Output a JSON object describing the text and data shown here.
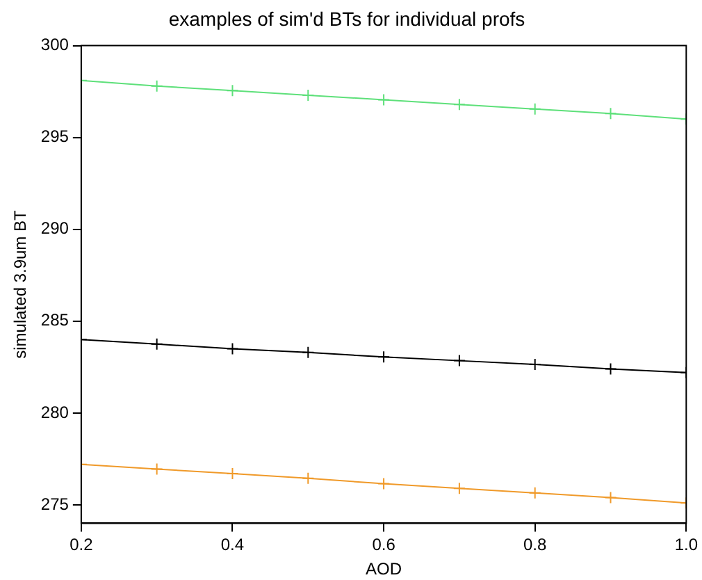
{
  "chart_data": {
    "type": "line",
    "title": "examples of sim'd BTs for individual profs",
    "xlabel": "AOD",
    "ylabel": "simulated 3.9um BT",
    "x": [
      0.2,
      0.3,
      0.4,
      0.5,
      0.6,
      0.7,
      0.8,
      0.9,
      1.0
    ],
    "series": [
      {
        "color": "#5ee07a",
        "values": [
          298.1,
          297.8,
          297.55,
          297.3,
          297.05,
          296.8,
          296.55,
          296.3,
          296.0
        ]
      },
      {
        "color": "#000000",
        "values": [
          284.0,
          283.75,
          283.5,
          283.3,
          283.05,
          282.85,
          282.65,
          282.4,
          282.2
        ]
      },
      {
        "color": "#f09a2a",
        "values": [
          277.2,
          276.95,
          276.7,
          276.45,
          276.15,
          275.9,
          275.65,
          275.4,
          275.1
        ]
      }
    ],
    "xlim": [
      0.2,
      1.0
    ],
    "xticks": [
      {
        "value": 0.2,
        "label": "0.2"
      },
      {
        "value": 0.4,
        "label": "0.4"
      },
      {
        "value": 0.6,
        "label": "0.6"
      },
      {
        "value": 0.8,
        "label": "0.8"
      },
      {
        "value": 1.0,
        "label": "1.0"
      }
    ],
    "ylim": [
      274,
      300
    ],
    "yticks": [
      275,
      280,
      285,
      290,
      295,
      300
    ],
    "grid": false,
    "legend": false,
    "marker": "cross",
    "line_style": "solid"
  }
}
